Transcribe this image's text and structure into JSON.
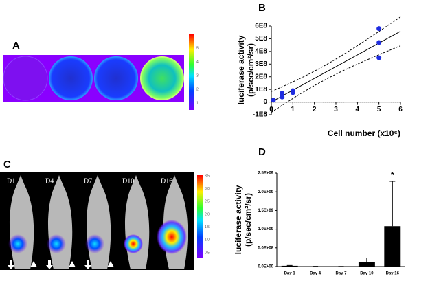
{
  "panels": {
    "A": {
      "label": "A",
      "colorbar_labels": [
        "1",
        "2",
        "3",
        "4",
        "5"
      ]
    },
    "C": {
      "label": "C",
      "mouse_labels": [
        "D1",
        "D4",
        "D7",
        "D10",
        "D16"
      ],
      "colorbar_labels": [
        "0.5",
        "1.0",
        "1.5",
        "2.0",
        "2.5",
        "3.0",
        "3.5"
      ]
    }
  },
  "chart_data": [
    {
      "type": "scatter",
      "panel": "B",
      "y_label": [
        "luciferase activity",
        "(p/sec/cm²/sr)"
      ],
      "x_label": "Cell number (x10⁶)",
      "x": [
        0.1,
        0.5,
        0.5,
        1,
        1,
        5,
        5,
        5
      ],
      "series": [
        {
          "color": "#1f2de0",
          "values": [
            15000000,
            70000000,
            40000000,
            90000000,
            75000000,
            580000000,
            470000000,
            350000000
          ]
        }
      ],
      "xlim": [
        0,
        6
      ],
      "xticks": [
        0,
        1,
        2,
        3,
        4,
        5,
        6
      ],
      "ylim": [
        -100000000,
        600000000
      ],
      "yticks": [
        {
          "value": -100000000,
          "label": "-1E8"
        },
        0,
        {
          "value": 100000000,
          "label": "1E8"
        },
        {
          "value": 200000000,
          "label": "2E8"
        },
        {
          "value": 300000000,
          "label": "3E8"
        },
        {
          "value": 400000000,
          "label": "4E8"
        },
        {
          "value": 500000000,
          "label": "5E8"
        },
        {
          "value": 600000000,
          "label": "6E8"
        }
      ]
    },
    {
      "type": "bar",
      "panel": "D",
      "y_label": [
        "luciferase activity",
        "(p/sec/cm²/sr)"
      ],
      "categories": [
        "Day 1",
        "Day 4",
        "Day 7",
        "Day 10",
        "Day 16"
      ],
      "values": [
        20000000,
        5000000,
        3000000,
        120000000,
        1080000000
      ],
      "errors": [
        10000000,
        3000000,
        2000000,
        110000000,
        1200000000
      ],
      "annotations": [
        {
          "category": 4,
          "text": "*"
        }
      ],
      "color": "#000000",
      "ylim": [
        0,
        2500000000
      ],
      "yticks": [
        {
          "value": 0,
          "label": "0.0E+00"
        },
        {
          "value": 500000000,
          "label": "5.0E+08"
        },
        {
          "value": 1000000000,
          "label": "1.0E+09"
        },
        {
          "value": 1500000000,
          "label": "1.5E+09"
        },
        {
          "value": 2000000000,
          "label": "2.0E+09"
        },
        {
          "value": 2500000000,
          "label": "2.5E+09"
        }
      ]
    }
  ]
}
